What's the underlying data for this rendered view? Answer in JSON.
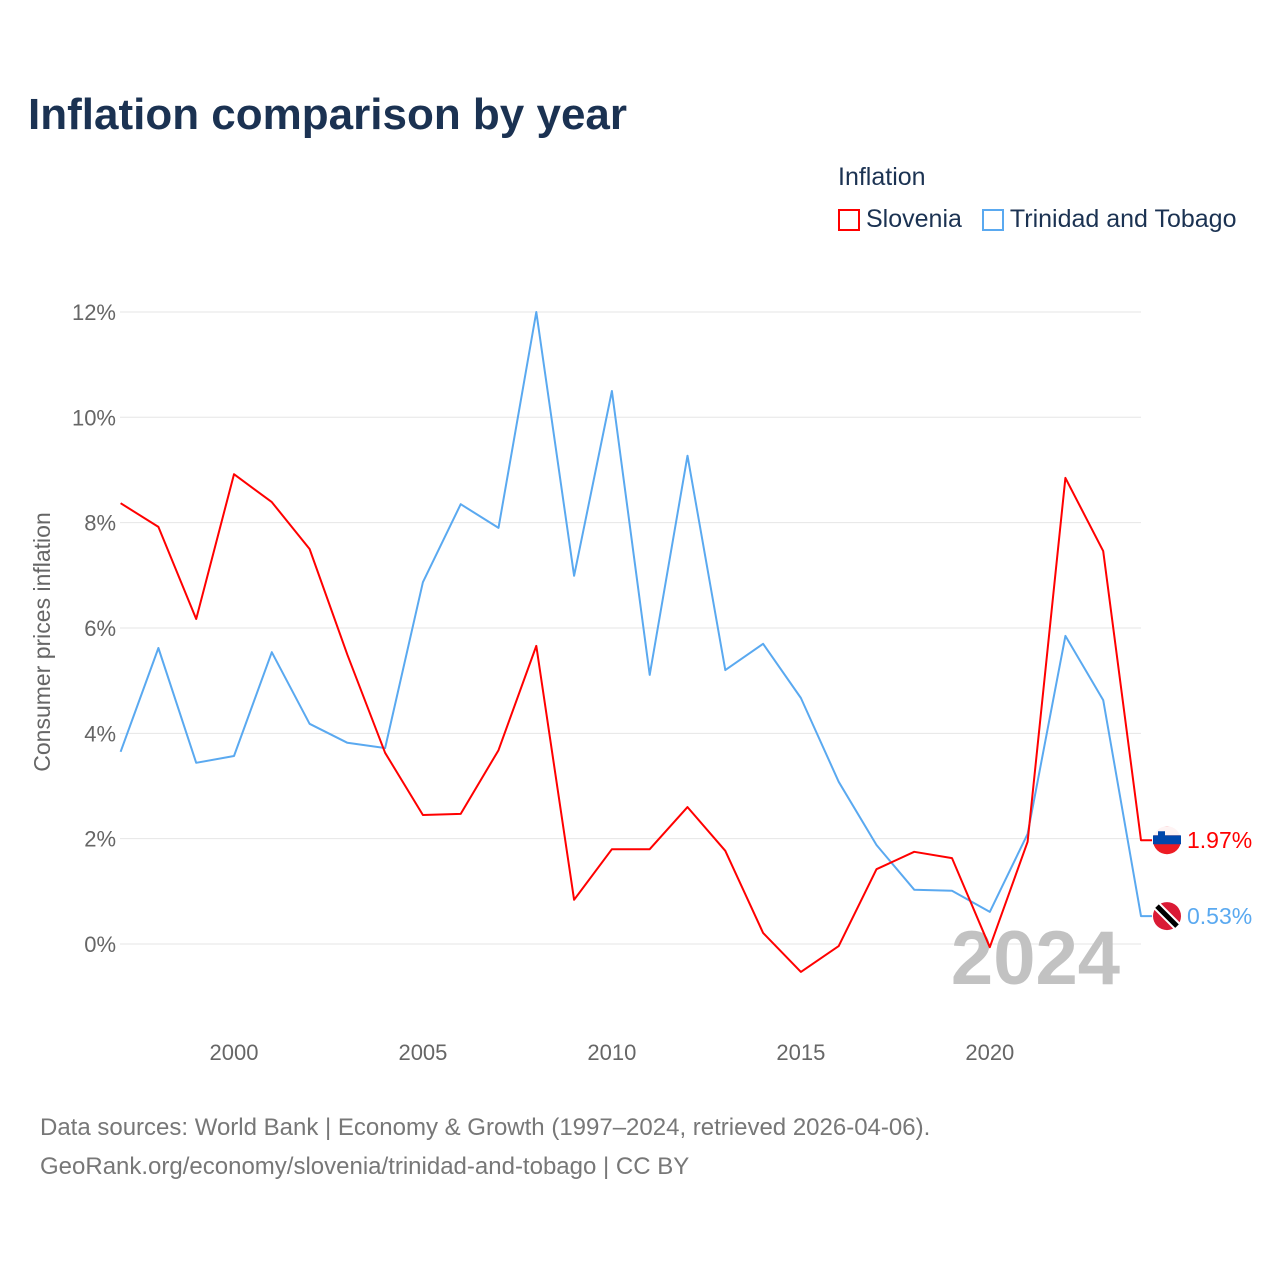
{
  "title": "Inflation comparison by year",
  "legend": {
    "title": "Inflation",
    "items": [
      {
        "label": "Slovenia",
        "color": "#ff0000"
      },
      {
        "label": "Trinidad and Tobago",
        "color": "#5aa9f0"
      }
    ]
  },
  "footer": {
    "line1": "Data sources: World Bank | Economy & Growth (1997–2024, retrieved 2026-04-06).",
    "line2": "GeoRank.org/economy/slovenia/trinidad-and-tobago | CC BY"
  },
  "chart_data": {
    "type": "line",
    "title": "Inflation comparison by year",
    "xlabel": "",
    "ylabel": "Consumer prices inflation",
    "x": [
      1997,
      1998,
      1999,
      2000,
      2001,
      2002,
      2003,
      2004,
      2005,
      2006,
      2007,
      2008,
      2009,
      2010,
      2011,
      2012,
      2013,
      2014,
      2015,
      2016,
      2017,
      2018,
      2019,
      2020,
      2021,
      2022,
      2023,
      2024
    ],
    "xlim": [
      1997,
      2024
    ],
    "ylim": [
      -1.6,
      12.5
    ],
    "xticks": [
      2000,
      2005,
      2010,
      2015,
      2020
    ],
    "yticks": [
      0,
      2,
      4,
      6,
      8,
      10,
      12
    ],
    "ytick_labels": [
      "0%",
      "2%",
      "4%",
      "6%",
      "8%",
      "10%",
      "12%"
    ],
    "grid": true,
    "year_watermark": "2024",
    "series": [
      {
        "name": "Slovenia",
        "color": "#ff0000",
        "end_label": "1.97%",
        "values": [
          8.37,
          7.92,
          6.17,
          8.92,
          8.39,
          7.5,
          5.49,
          3.63,
          2.45,
          2.47,
          3.68,
          5.66,
          0.84,
          1.8,
          1.8,
          2.6,
          1.77,
          0.21,
          -0.53,
          -0.04,
          1.42,
          1.75,
          1.63,
          -0.06,
          1.94,
          8.85,
          7.46,
          1.97
        ]
      },
      {
        "name": "Trinidad and Tobago",
        "color": "#5aa9f0",
        "end_label": "0.53%",
        "values": [
          3.65,
          5.62,
          3.44,
          3.57,
          5.54,
          4.18,
          3.82,
          3.72,
          6.87,
          8.35,
          7.9,
          12.0,
          6.99,
          10.5,
          5.11,
          9.27,
          5.2,
          5.7,
          4.67,
          3.08,
          1.88,
          1.03,
          1.01,
          0.61,
          2.09,
          5.85,
          4.63,
          0.53
        ]
      }
    ]
  }
}
